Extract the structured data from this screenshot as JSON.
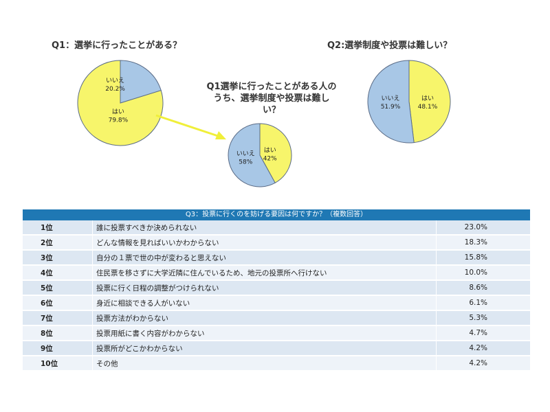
{
  "chart_data": [
    {
      "type": "pie",
      "title": "Q1：選挙に行ったことがある？",
      "categories": [
        "はい",
        "いいえ"
      ],
      "values": [
        79.8,
        20.2
      ],
      "value_labels": [
        "79.8%",
        "20.2%"
      ],
      "colors": [
        "#f7f56b",
        "#a8c7e6"
      ]
    },
    {
      "type": "pie",
      "title": "Q1選挙に行ったことがある人のうち、選挙制度や投票は難しい？",
      "categories": [
        "はい",
        "いいえ"
      ],
      "values": [
        42,
        58
      ],
      "value_labels": [
        "42%",
        "58%"
      ],
      "colors": [
        "#f7f56b",
        "#a8c7e6"
      ]
    },
    {
      "type": "pie",
      "title": "Q2:選挙制度や投票は難しい？",
      "categories": [
        "はい",
        "いいえ"
      ],
      "values": [
        48.1,
        51.9
      ],
      "value_labels": [
        "48.1%",
        "51.9%"
      ],
      "colors": [
        "#f7f56b",
        "#a8c7e6"
      ]
    },
    {
      "type": "table",
      "title": "Q3：投票に行くのを妨げる要因は何ですか？（複数回答）",
      "rows": [
        {
          "rank": "1位",
          "reason": "誰に投票すべきか決められない",
          "pct": "23.0%"
        },
        {
          "rank": "2位",
          "reason": "どんな情報を見ればいいかわからない",
          "pct": "18.3%"
        },
        {
          "rank": "3位",
          "reason": "自分の１票で世の中が変わると思えない",
          "pct": "15.8%"
        },
        {
          "rank": "4位",
          "reason": "住民票を移さずに大学近隣に住んでいるため、地元の投票所へ行けない",
          "pct": "10.0%"
        },
        {
          "rank": "5位",
          "reason": "投票に行く日程の調整がつけられない",
          "pct": "8.6%"
        },
        {
          "rank": "6位",
          "reason": "身近に相談できる人がいない",
          "pct": "6.1%"
        },
        {
          "rank": "7位",
          "reason": "投票方法がわからない",
          "pct": "5.3%"
        },
        {
          "rank": "8位",
          "reason": "投票用紙に書く内容がわからない",
          "pct": "4.7%"
        },
        {
          "rank": "9位",
          "reason": "投票所がどこかわからない",
          "pct": "4.2%"
        },
        {
          "rank": "10位",
          "reason": "その他",
          "pct": "4.2%"
        }
      ]
    }
  ]
}
